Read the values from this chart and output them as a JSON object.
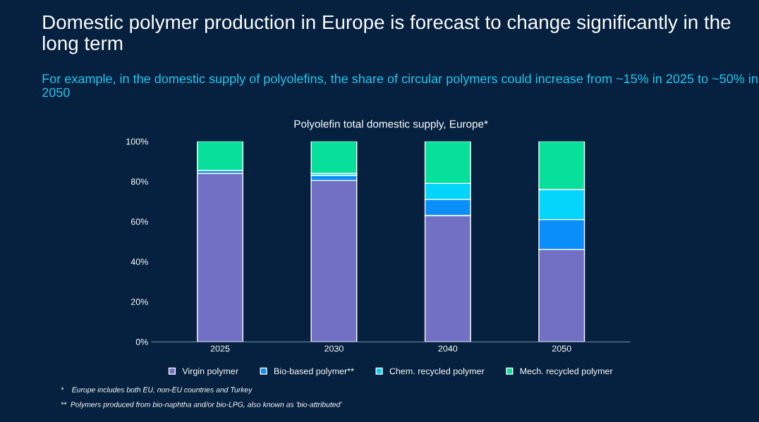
{
  "chart_data": {
    "type": "bar",
    "title": "Domestic polymer production in Europe is forecast to change significantly in the long term",
    "subtitle": "For example, in the domestic supply of polyolefins, the share of circular polymers could increase from ~15% in 2025 to ~50% in 2050",
    "xlabel": "Polyolefin total domestic supply, Europe*",
    "categories": [
      "2025",
      "2030",
      "2040",
      "2050"
    ],
    "stacked": true,
    "series": [
      {
        "name": "Virgin polymer",
        "color": "#7170c4",
        "values": [
          84,
          80.5,
          63,
          46
        ]
      },
      {
        "name": "Bio-based polymer**",
        "color": "#0a8ffa",
        "values": [
          1.5,
          2.5,
          8,
          15
        ]
      },
      {
        "name": "Chem. recycled polymer",
        "color": "#05d5fb",
        "values": [
          0,
          1,
          8,
          15
        ]
      },
      {
        "name": "Mech. recycled polymer",
        "color": "#07e09a",
        "values": [
          14.5,
          16,
          21,
          24
        ]
      }
    ],
    "ylim": [
      0,
      100
    ],
    "yticks": [
      {
        "value": 0,
        "label": "0%"
      },
      {
        "value": 20,
        "label": "20%"
      },
      {
        "value": 40,
        "label": "40%"
      },
      {
        "value": 60,
        "label": "60%"
      },
      {
        "value": 80,
        "label": "80%"
      },
      {
        "value": 100,
        "label": "100%"
      }
    ],
    "grid": false,
    "legend": "bottom",
    "annotations": [
      "*    Europe includes both EU, non-EU countries and Turkey",
      "**  Polymers produced from bio-naphtha and/or bio-LPG, also known as 'bio-attributed'"
    ]
  }
}
